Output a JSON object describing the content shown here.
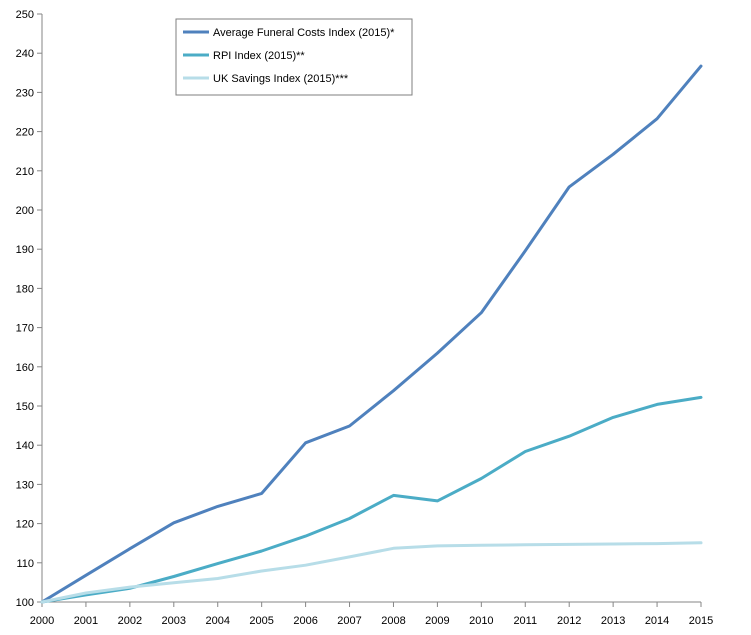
{
  "chart_data": {
    "type": "line",
    "title": "",
    "xlabel": "",
    "ylabel": "",
    "x": [
      2000,
      2001,
      2002,
      2003,
      2004,
      2005,
      2006,
      2007,
      2008,
      2009,
      2010,
      2011,
      2012,
      2013,
      2014,
      2015
    ],
    "ylim": [
      100,
      250
    ],
    "yticks": [
      100,
      110,
      120,
      130,
      140,
      150,
      160,
      170,
      180,
      190,
      200,
      210,
      220,
      230,
      240,
      250
    ],
    "grid": false,
    "legend_position": "top-center",
    "series": [
      {
        "name": "Average Funeral Costs Index (2015)*",
        "color": "#4f81bd",
        "values": [
          100,
          106.8,
          113.6,
          120.2,
          124.4,
          127.7,
          140.6,
          144.9,
          153.9,
          163.5,
          173.8,
          189.6,
          205.9,
          214.2,
          223.3,
          236.7
        ]
      },
      {
        "name": "RPI Index (2015)**",
        "color": "#4bacc6",
        "values": [
          100,
          101.8,
          103.5,
          106.5,
          109.8,
          113.0,
          116.8,
          121.3,
          127.2,
          125.8,
          131.5,
          138.4,
          142.3,
          147.1,
          150.4,
          152.2
        ]
      },
      {
        "name": "UK Savings Index (2015)***",
        "color": "#b7dde8",
        "values": [
          100,
          102.3,
          103.8,
          104.9,
          106.0,
          107.9,
          109.4,
          111.5,
          113.7,
          114.3,
          114.5,
          114.6,
          114.7,
          114.8,
          114.9,
          115.1
        ]
      }
    ]
  }
}
